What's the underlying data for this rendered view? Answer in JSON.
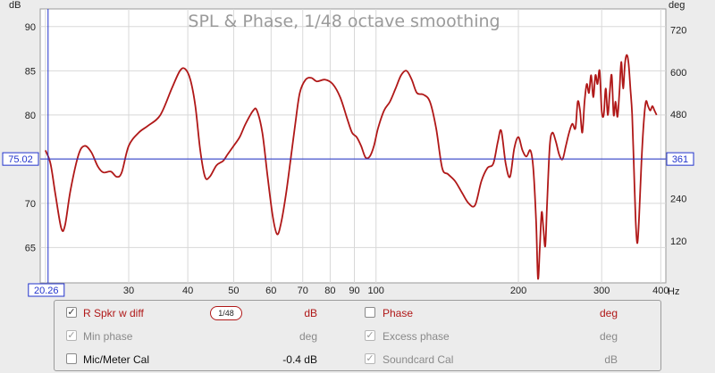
{
  "chart_data": {
    "type": "line",
    "title": "SPL & Phase, 1/48 octave smoothing",
    "x_unit": "Hz",
    "y_left_unit": "dB",
    "y_right_unit": "deg",
    "x_scale": "log",
    "xlim": [
      19.5,
      410
    ],
    "ylim_left": [
      61,
      92
    ],
    "ylim_right": [
      0,
      780
    ],
    "x_ticks": [
      30,
      40,
      50,
      60,
      70,
      80,
      90,
      100,
      200,
      300,
      400
    ],
    "x_tick_labels": [
      "30",
      "40",
      "50",
      "60",
      "70",
      "80",
      "90",
      "100",
      "200",
      "300",
      "400"
    ],
    "y_left_ticks": [
      65,
      70,
      75,
      80,
      85,
      90
    ],
    "y_left_tick_labels": [
      "65",
      "70",
      "75",
      "80",
      "85",
      "90"
    ],
    "y_right_ticks": [
      120,
      240,
      360,
      480,
      600,
      720
    ],
    "y_right_tick_labels": [
      "120",
      "240",
      "360",
      "480",
      "600",
      "720"
    ],
    "grid": true,
    "cursor": {
      "x": 20.26,
      "x_label": "20.26",
      "y": 75.02,
      "y_label": "75.02",
      "y_right_label": "361"
    },
    "series": [
      {
        "name": "R Spkr w diff",
        "color": "#b01818",
        "points": [
          [
            20.0,
            76.0
          ],
          [
            20.5,
            74.5
          ],
          [
            21.0,
            71.0
          ],
          [
            21.6,
            67.2
          ],
          [
            22.0,
            67.5
          ],
          [
            22.6,
            71.5
          ],
          [
            23.5,
            75.5
          ],
          [
            24.2,
            76.5
          ],
          [
            25.0,
            75.8
          ],
          [
            25.8,
            74.2
          ],
          [
            26.5,
            73.5
          ],
          [
            27.5,
            73.6
          ],
          [
            28.3,
            73.0
          ],
          [
            29.0,
            73.5
          ],
          [
            30.0,
            76.5
          ],
          [
            31.5,
            78.0
          ],
          [
            33.0,
            78.8
          ],
          [
            35.0,
            80.0
          ],
          [
            37.0,
            83.0
          ],
          [
            38.5,
            85.0
          ],
          [
            39.5,
            85.2
          ],
          [
            40.5,
            84.0
          ],
          [
            41.5,
            81.0
          ],
          [
            42.5,
            76.0
          ],
          [
            43.5,
            73.0
          ],
          [
            44.5,
            73.0
          ],
          [
            46.0,
            74.3
          ],
          [
            47.5,
            74.8
          ],
          [
            48.5,
            75.5
          ],
          [
            50.0,
            76.5
          ],
          [
            51.5,
            77.5
          ],
          [
            53.0,
            79.0
          ],
          [
            55.0,
            80.5
          ],
          [
            56.0,
            80.5
          ],
          [
            57.5,
            78.0
          ],
          [
            59.0,
            73.0
          ],
          [
            60.5,
            68.5
          ],
          [
            61.8,
            66.5
          ],
          [
            63.0,
            67.8
          ],
          [
            64.5,
            71.0
          ],
          [
            66.0,
            75.0
          ],
          [
            67.5,
            79.0
          ],
          [
            69.0,
            82.5
          ],
          [
            71.0,
            84.0
          ],
          [
            73.0,
            84.2
          ],
          [
            75.0,
            83.8
          ],
          [
            78.0,
            84.0
          ],
          [
            81.0,
            83.5
          ],
          [
            84.0,
            82.0
          ],
          [
            87.0,
            79.5
          ],
          [
            89.0,
            78.0
          ],
          [
            91.0,
            77.5
          ],
          [
            93.0,
            76.5
          ],
          [
            95.0,
            75.2
          ],
          [
            97.0,
            75.3
          ],
          [
            99.0,
            76.5
          ],
          [
            101.0,
            78.5
          ],
          [
            104.0,
            80.5
          ],
          [
            107.0,
            81.5
          ],
          [
            110.0,
            83.0
          ],
          [
            113.0,
            84.5
          ],
          [
            116.0,
            85.0
          ],
          [
            119.0,
            84.0
          ],
          [
            122.0,
            82.5
          ],
          [
            126.0,
            82.3
          ],
          [
            130.0,
            81.5
          ],
          [
            134.0,
            78.5
          ],
          [
            138.0,
            74.0
          ],
          [
            142.0,
            73.3
          ],
          [
            147.0,
            72.5
          ],
          [
            152.0,
            71.2
          ],
          [
            157.0,
            70.0
          ],
          [
            162.0,
            69.8
          ],
          [
            167.0,
            72.5
          ],
          [
            172.0,
            74.0
          ],
          [
            177.0,
            74.5
          ],
          [
            181.0,
            77.0
          ],
          [
            184.0,
            78.2
          ],
          [
            188.0,
            74.5
          ],
          [
            192.0,
            73.0
          ],
          [
            196.0,
            76.2
          ],
          [
            200.0,
            77.5
          ],
          [
            204.0,
            76.0
          ],
          [
            208.0,
            75.3
          ],
          [
            212.0,
            76.0
          ],
          [
            215.0,
            74.0
          ],
          [
            218.0,
            68.0
          ],
          [
            220.0,
            61.5
          ],
          [
            222.0,
            65.0
          ],
          [
            224.0,
            69.0
          ],
          [
            226.0,
            67.0
          ],
          [
            228.0,
            65.2
          ],
          [
            230.0,
            70.0
          ],
          [
            233.0,
            76.5
          ],
          [
            236.0,
            78.0
          ],
          [
            240.0,
            77.0
          ],
          [
            244.0,
            75.5
          ],
          [
            248.0,
            75.0
          ],
          [
            252.0,
            76.5
          ],
          [
            256.0,
            78.0
          ],
          [
            260.0,
            79.0
          ],
          [
            264.0,
            78.5
          ],
          [
            267.0,
            81.5
          ],
          [
            270.0,
            80.5
          ],
          [
            273.0,
            78.0
          ],
          [
            276.0,
            81.5
          ],
          [
            279.0,
            83.5
          ],
          [
            282.0,
            82.5
          ],
          [
            285.0,
            84.5
          ],
          [
            288.0,
            82.0
          ],
          [
            291.0,
            84.5
          ],
          [
            294.0,
            83.5
          ],
          [
            297.0,
            85.0
          ],
          [
            300.0,
            80.5
          ],
          [
            303.0,
            80.0
          ],
          [
            306.0,
            83.0
          ],
          [
            309.0,
            80.0
          ],
          [
            312.0,
            82.5
          ],
          [
            315.0,
            84.5
          ],
          [
            318.0,
            80.0
          ],
          [
            321.0,
            81.5
          ],
          [
            324.0,
            79.8
          ],
          [
            327.0,
            82.5
          ],
          [
            330.0,
            86.0
          ],
          [
            333.0,
            83.0
          ],
          [
            336.0,
            85.8
          ],
          [
            339.0,
            86.8
          ],
          [
            342.0,
            85.8
          ],
          [
            345.0,
            83.0
          ],
          [
            348.0,
            80.0
          ],
          [
            351.0,
            74.0
          ],
          [
            354.0,
            68.0
          ],
          [
            357.0,
            65.5
          ],
          [
            360.0,
            68.5
          ],
          [
            364.0,
            74.5
          ],
          [
            368.0,
            79.0
          ],
          [
            372.0,
            81.5
          ],
          [
            376.0,
            81.0
          ],
          [
            380.0,
            80.5
          ],
          [
            384.0,
            81.0
          ],
          [
            388.0,
            80.5
          ],
          [
            392.0,
            80.0
          ]
        ]
      }
    ]
  },
  "legend": {
    "rows": [
      {
        "left": {
          "label": "R Spkr w diff",
          "checked": true,
          "greyed": false,
          "unit": "dB",
          "smoothing": "1/48"
        },
        "right": {
          "label": "Phase",
          "checked": false,
          "greyed": false,
          "unit": "deg"
        }
      },
      {
        "left": {
          "label": "Min phase",
          "checked": true,
          "greyed": true,
          "unit": "deg"
        },
        "right": {
          "label": "Excess phase",
          "checked": true,
          "greyed": true,
          "unit": "deg"
        }
      },
      {
        "left": {
          "label": "Mic/Meter Cal",
          "checked": false,
          "greyed": false,
          "unit": "-0.4 dB"
        },
        "right": {
          "label": "Soundcard Cal",
          "checked": true,
          "greyed": true,
          "unit": "dB"
        }
      }
    ],
    "check_glyph": "✓"
  }
}
